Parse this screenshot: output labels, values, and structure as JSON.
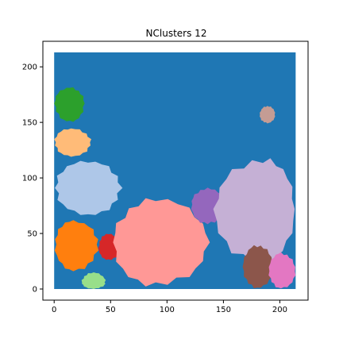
{
  "chart_data": {
    "type": "heatmap",
    "title": "NClusters 12",
    "xlabel": "",
    "ylabel": "",
    "xlim": [
      -10,
      225
    ],
    "ylim": [
      -10,
      223
    ],
    "x_ticks": [
      0,
      50,
      100,
      150,
      200
    ],
    "y_ticks": [
      0,
      50,
      100,
      150,
      200
    ],
    "grid": false,
    "domain": {
      "x": [
        0,
        214
      ],
      "y": [
        0,
        213
      ]
    },
    "background_cluster": {
      "id": 0,
      "color": "#1f77b4"
    },
    "clusters": [
      {
        "id": 1,
        "color": "#2ca02c",
        "center": [
          14,
          167
        ],
        "extent": [
          0,
          27,
          150,
          182
        ]
      },
      {
        "id": 2,
        "color": "#ffbb78",
        "center": [
          15,
          132
        ],
        "extent": [
          0,
          33,
          119,
          145
        ]
      },
      {
        "id": 3,
        "color": "#aec7e8",
        "center": [
          30,
          91
        ],
        "extent": [
          0,
          60,
          66,
          116
        ]
      },
      {
        "id": 4,
        "color": "#ff7f0e",
        "center": [
          17,
          40
        ],
        "extent": [
          0,
          40,
          16,
          62
        ]
      },
      {
        "id": 5,
        "color": "#d62728",
        "center": [
          48,
          37
        ],
        "extent": [
          39,
          60,
          26,
          50
        ]
      },
      {
        "id": 6,
        "color": "#98df8a",
        "center": [
          35,
          6
        ],
        "extent": [
          24,
          46,
          0,
          15
        ]
      },
      {
        "id": 7,
        "color": "#ff9896",
        "center": [
          90,
          42
        ],
        "extent": [
          51,
          138,
          2,
          82
        ]
      },
      {
        "id": 8,
        "color": "#9467bd",
        "center": [
          136,
          76
        ],
        "extent": [
          121,
          151,
          58,
          91
        ]
      },
      {
        "id": 9,
        "color": "#c5b0d5",
        "center": [
          185,
          72
        ],
        "extent": [
          141,
          214,
          22,
          118
        ]
      },
      {
        "id": 10,
        "color": "#c49c94",
        "center": [
          189,
          157
        ],
        "extent": [
          182,
          196,
          149,
          165
        ]
      },
      {
        "id": 11,
        "color": "#8c564b",
        "center": [
          180,
          20
        ],
        "extent": [
          167,
          194,
          0,
          40
        ]
      },
      {
        "id": 12,
        "color": "#e377c2",
        "center": [
          201,
          16
        ],
        "extent": [
          190,
          214,
          0,
          33
        ]
      }
    ]
  }
}
